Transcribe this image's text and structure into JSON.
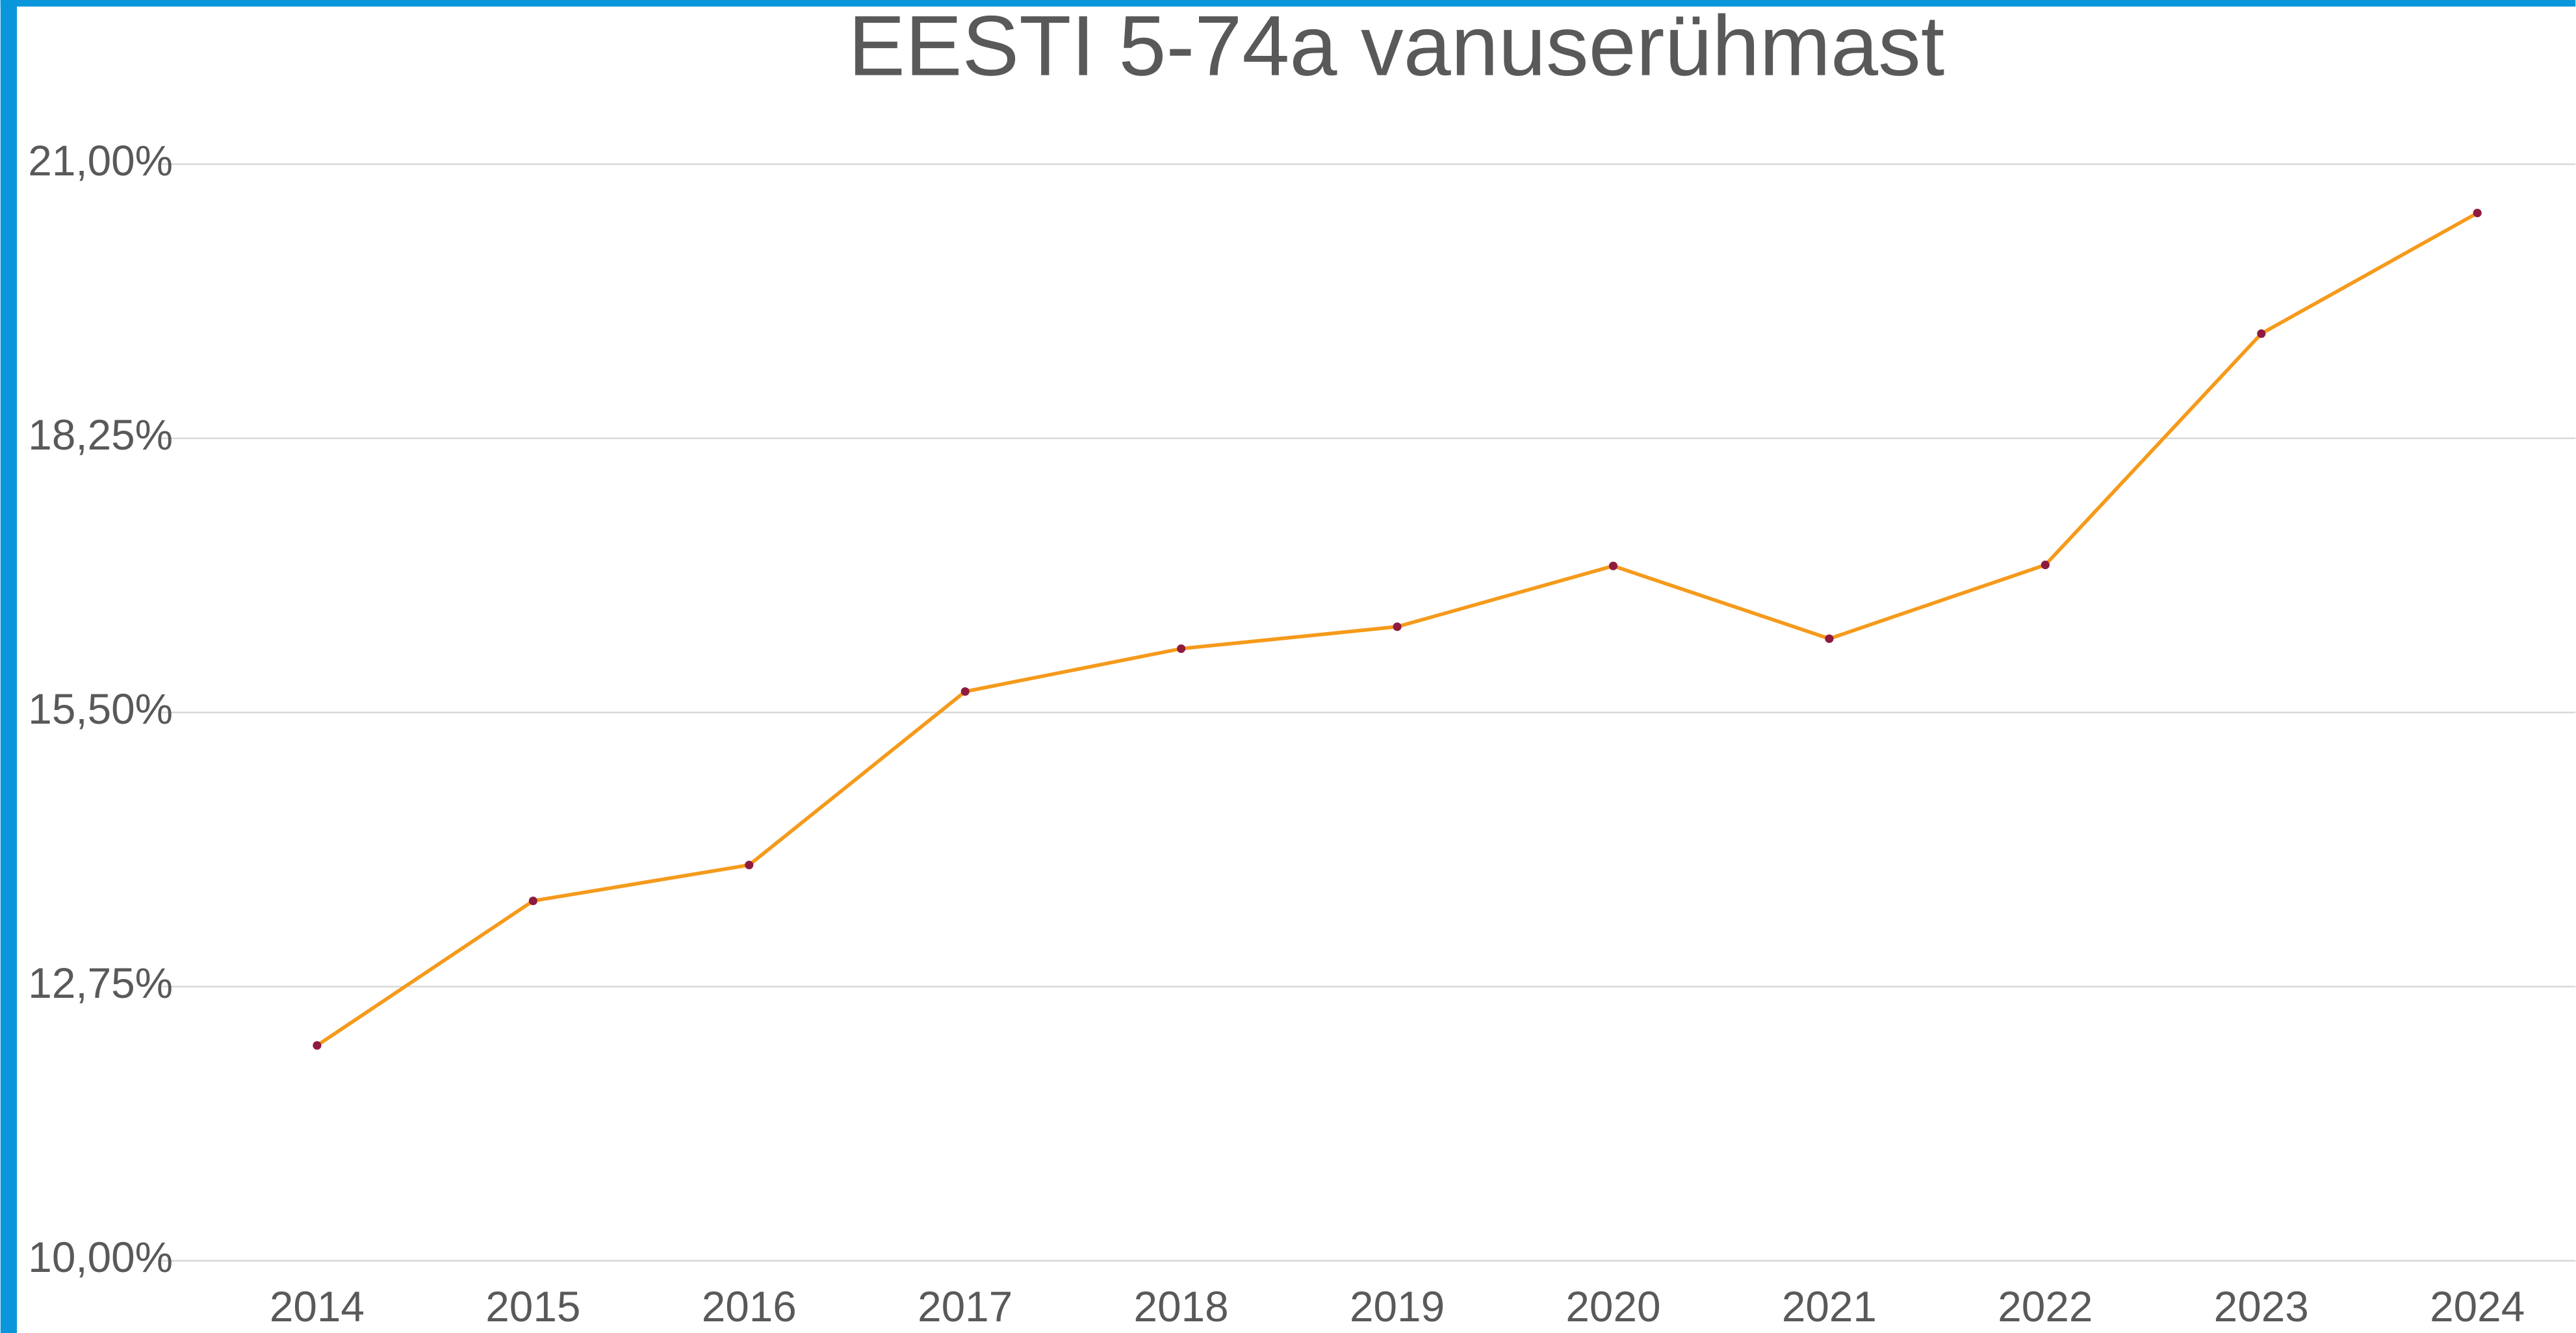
{
  "chart_data": {
    "type": "line",
    "title": "EESTI 5-74a vanuserühmast",
    "categories": [
      "2014",
      "2015",
      "2016",
      "2017",
      "2018",
      "2019",
      "2020",
      "2021",
      "2022",
      "2023",
      "2024"
    ],
    "values": [
      12.16,
      13.61,
      13.97,
      15.71,
      16.14,
      16.36,
      16.97,
      16.24,
      16.98,
      19.3,
      20.51
    ],
    "color": "#f59a1b",
    "marker_color": "#8e1b3f",
    "ylim": [
      10,
      21
    ],
    "yticks": [
      {
        "value": 10,
        "label": "10,00%"
      },
      {
        "value": 12.75,
        "label": "12,75%"
      },
      {
        "value": 15.5,
        "label": "15,50%"
      },
      {
        "value": 18.25,
        "label": "18,25%"
      },
      {
        "value": 21,
        "label": "21,00%"
      }
    ],
    "grid": true
  }
}
